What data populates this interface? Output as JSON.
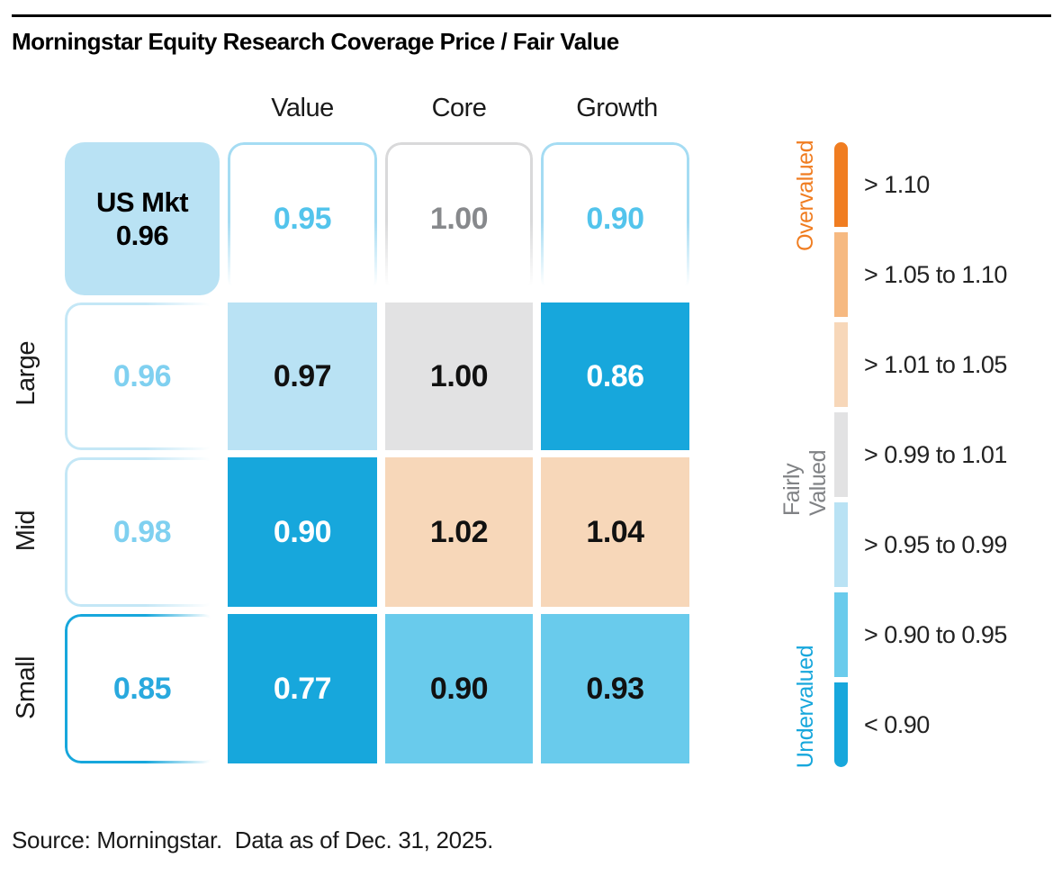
{
  "header": {
    "title": "Morningstar Equity Research Coverage Price / Fair Value"
  },
  "columns": [
    {
      "label": "Value"
    },
    {
      "label": "Core"
    },
    {
      "label": "Growth"
    }
  ],
  "rows": [
    {
      "label": "Large"
    },
    {
      "label": "Mid"
    },
    {
      "label": "Small"
    }
  ],
  "grid": {
    "us_mkt": {
      "label": "US Mkt",
      "value": "0.96"
    },
    "col_summary": [
      {
        "col": "Value",
        "value": "0.95",
        "bucket": "undervalued-90-95"
      },
      {
        "col": "Core",
        "value": "1.00",
        "bucket": "fairly-valued"
      },
      {
        "col": "Growth",
        "value": "0.90",
        "bucket": "undervalued-90-95"
      }
    ],
    "row_summary": [
      {
        "row": "Large",
        "value": "0.96",
        "bucket": "undervalued-95-99"
      },
      {
        "row": "Mid",
        "value": "0.98",
        "bucket": "undervalued-95-99"
      },
      {
        "row": "Small",
        "value": "0.85",
        "bucket": "undervalued-below-90"
      }
    ],
    "matrix_cells": [
      {
        "row": "Large",
        "col": "Value",
        "value": "0.97",
        "bucket": "undervalued-95-99"
      },
      {
        "row": "Large",
        "col": "Core",
        "value": "1.00",
        "bucket": "fairly-valued"
      },
      {
        "row": "Large",
        "col": "Growth",
        "value": "0.86",
        "bucket": "undervalued-below-90"
      },
      {
        "row": "Mid",
        "col": "Value",
        "value": "0.90",
        "bucket": "undervalued-below-90"
      },
      {
        "row": "Mid",
        "col": "Core",
        "value": "1.02",
        "bucket": "overvalued-101-105"
      },
      {
        "row": "Mid",
        "col": "Growth",
        "value": "1.04",
        "bucket": "overvalued-101-105"
      },
      {
        "row": "Small",
        "col": "Value",
        "value": "0.77",
        "bucket": "undervalued-below-90"
      },
      {
        "row": "Small",
        "col": "Core",
        "value": "0.90",
        "bucket": "undervalued-90-95"
      },
      {
        "row": "Small",
        "col": "Growth",
        "value": "0.93",
        "bucket": "undervalued-90-95"
      }
    ]
  },
  "legend": {
    "groups": [
      {
        "label": "Overvalued",
        "color": "#f07d21"
      },
      {
        "label": "Fairly Valued",
        "color": "#808285"
      },
      {
        "label": "Undervalued",
        "color": "#17a7dc"
      }
    ],
    "bins": [
      {
        "label": "> 1.10",
        "color": "#f07d21"
      },
      {
        "label": "> 1.05 to 1.10",
        "color": "#f6b981"
      },
      {
        "label": "> 1.01 to 1.05",
        "color": "#f7d7b9"
      },
      {
        "label": "> 0.99 to 1.01",
        "color": "#e2e2e3"
      },
      {
        "label": "> 0.95 to 0.99",
        "color": "#b9e2f4"
      },
      {
        "label": "> 0.90 to 0.95",
        "color": "#69cbec"
      },
      {
        "label": "< 0.90",
        "color": "#17a7dc"
      }
    ]
  },
  "footer": {
    "source": "Source: Morningstar.  Data as of Dec. 31, 2025."
  },
  "palette": {
    "orange": "#f07d21",
    "mid-orange": "#f6b981",
    "peach": "#f7d7b9",
    "gray": "#e2e2e3",
    "light-blue": "#b9e2f4",
    "medium-blue": "#69cbec",
    "dark-blue": "#17a7dc",
    "blue-border": "#a5dcf3",
    "pale-blue-border": "#c4e7f6",
    "gray-border": "#d9d9da",
    "blue-text": "#53c4ec",
    "pale-blue-text": "#7fd0f0",
    "dark-blue-text": "#29a9de",
    "gray-text": "#87898c",
    "legend-gray-text": "#808285"
  },
  "chart_data": {
    "type": "heatmap",
    "title": "Morningstar Equity Research Coverage Price / Fair Value",
    "columns": [
      "Value",
      "Core",
      "Growth"
    ],
    "rows": [
      "Large",
      "Mid",
      "Small"
    ],
    "us_market_total": 0.96,
    "column_totals": {
      "Value": 0.95,
      "Core": 1.0,
      "Growth": 0.9
    },
    "row_totals": {
      "Large": 0.96,
      "Mid": 0.98,
      "Small": 0.85
    },
    "matrix": [
      [
        0.97,
        1.0,
        0.86
      ],
      [
        0.9,
        1.02,
        1.04
      ],
      [
        0.77,
        0.9,
        0.93
      ]
    ],
    "legend_bins": [
      "> 1.10",
      "> 1.05 to 1.10",
      "> 1.01 to 1.05",
      "> 0.99 to 1.01",
      "> 0.95 to 0.99",
      "> 0.90 to 0.95",
      "< 0.90"
    ],
    "legend_groups": [
      "Overvalued",
      "Fairly Valued",
      "Undervalued"
    ],
    "source": "Source: Morningstar.  Data as of Dec. 31, 2025."
  }
}
